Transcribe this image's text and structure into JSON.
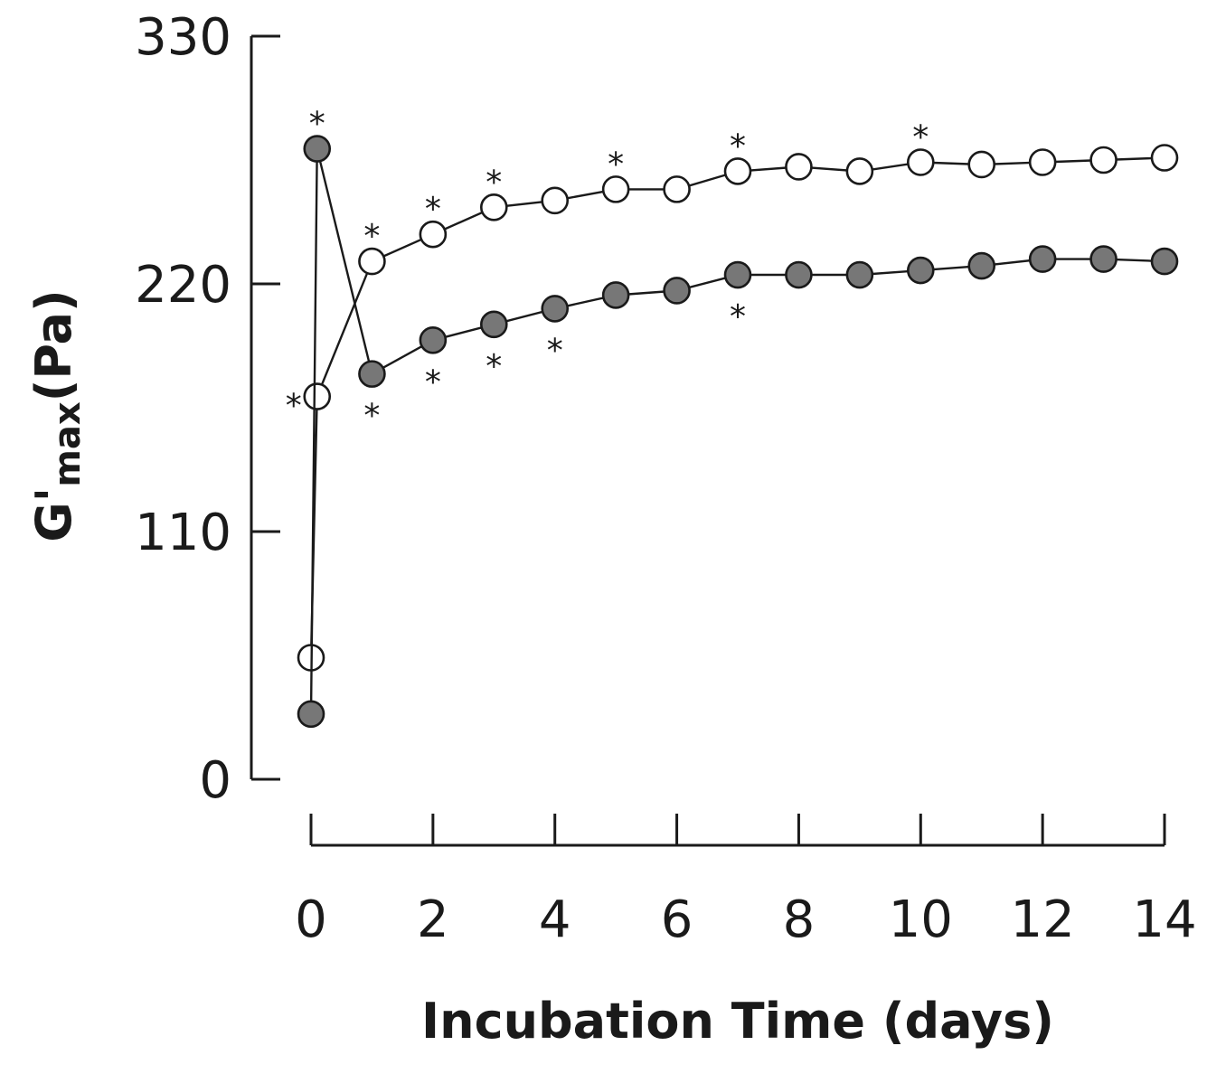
{
  "chart_data": {
    "type": "line",
    "title": "",
    "xlabel": "Incubation Time (days)",
    "ylabel": {
      "main": "G'",
      "sub": "max",
      "unit": "(Pa)"
    },
    "xlim": [
      0,
      14
    ],
    "ylim": [
      0,
      330
    ],
    "x_ticks": [
      0,
      2,
      4,
      6,
      8,
      10,
      12,
      14
    ],
    "x_minor_ticks": [
      0,
      2,
      4,
      6,
      8,
      10,
      12,
      14
    ],
    "y_ticks": [
      0,
      110,
      220,
      330
    ],
    "marker_label": "*",
    "series": [
      {
        "name": "open",
        "marker": "open-circle",
        "fill": "#ffffff",
        "points": [
          {
            "x": 0,
            "y": 54
          },
          {
            "x": 0.1,
            "y": 170,
            "sig": "left"
          },
          {
            "x": 1,
            "y": 230,
            "sig": "above"
          },
          {
            "x": 2,
            "y": 242,
            "sig": "above"
          },
          {
            "x": 3,
            "y": 254,
            "sig": "above"
          },
          {
            "x": 4,
            "y": 257
          },
          {
            "x": 5,
            "y": 262,
            "sig": "above"
          },
          {
            "x": 6,
            "y": 262
          },
          {
            "x": 7,
            "y": 270,
            "sig": "above"
          },
          {
            "x": 8,
            "y": 272
          },
          {
            "x": 9,
            "y": 270
          },
          {
            "x": 10,
            "y": 274,
            "sig": "above"
          },
          {
            "x": 11,
            "y": 273
          },
          {
            "x": 12,
            "y": 274
          },
          {
            "x": 13,
            "y": 275
          },
          {
            "x": 14,
            "y": 276
          }
        ]
      },
      {
        "name": "filled",
        "marker": "filled-circle",
        "fill": "#777777",
        "points": [
          {
            "x": 0,
            "y": 29
          },
          {
            "x": 0.1,
            "y": 280,
            "sig": "above"
          },
          {
            "x": 1,
            "y": 180,
            "sig": "below"
          },
          {
            "x": 2,
            "y": 195,
            "sig": "below"
          },
          {
            "x": 3,
            "y": 202,
            "sig": "below"
          },
          {
            "x": 4,
            "y": 209,
            "sig": "below"
          },
          {
            "x": 5,
            "y": 215
          },
          {
            "x": 6,
            "y": 217
          },
          {
            "x": 7,
            "y": 224,
            "sig": "below"
          },
          {
            "x": 8,
            "y": 224
          },
          {
            "x": 9,
            "y": 224
          },
          {
            "x": 10,
            "y": 226
          },
          {
            "x": 11,
            "y": 228
          },
          {
            "x": 12,
            "y": 231
          },
          {
            "x": 13,
            "y": 231
          },
          {
            "x": 14,
            "y": 230
          }
        ]
      }
    ]
  }
}
